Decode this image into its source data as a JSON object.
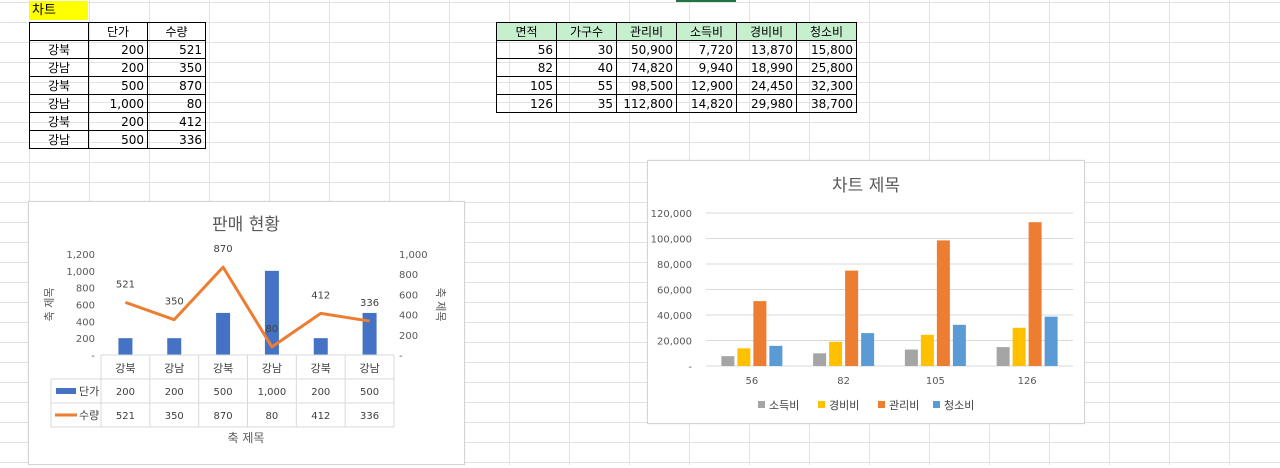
{
  "sheet": {
    "title_cell": "차트"
  },
  "table1": {
    "headers": [
      "",
      "단가",
      "수량"
    ],
    "rows": [
      [
        "강북",
        "200",
        "521"
      ],
      [
        "강남",
        "200",
        "350"
      ],
      [
        "강북",
        "500",
        "870"
      ],
      [
        "강남",
        "1,000",
        "80"
      ],
      [
        "강북",
        "200",
        "412"
      ],
      [
        "강남",
        "500",
        "336"
      ]
    ]
  },
  "table2": {
    "headers": [
      "면적",
      "가구수",
      "관리비",
      "소득비",
      "경비비",
      "청소비"
    ],
    "rows": [
      [
        "56",
        "30",
        "50,900",
        "7,720",
        "13,870",
        "15,800"
      ],
      [
        "82",
        "40",
        "74,820",
        "9,940",
        "18,990",
        "25,800"
      ],
      [
        "105",
        "55",
        "98,500",
        "12,900",
        "24,450",
        "32,300"
      ],
      [
        "126",
        "35",
        "112,800",
        "14,820",
        "29,980",
        "38,700"
      ]
    ]
  },
  "chart_data": [
    {
      "type": "bar",
      "title": "판매 현황",
      "xlabel": "축 제목",
      "ylabel": "축 제목",
      "y2label": "축 제목",
      "categories": [
        "강북",
        "강남",
        "강북",
        "강남",
        "강북",
        "강남"
      ],
      "series": [
        {
          "name": "단가",
          "kind": "bar",
          "color": "#4472c4",
          "values": [
            200,
            200,
            500,
            1000,
            200,
            500
          ]
        },
        {
          "name": "수량",
          "kind": "line",
          "color": "#ed7d31",
          "values": [
            521,
            350,
            870,
            80,
            412,
            336
          ],
          "axis": "secondary"
        }
      ],
      "yticks": [
        "1,200",
        "1,000",
        "800",
        "600",
        "400",
        "200",
        "-"
      ],
      "y2ticks": [
        "1,000",
        "800",
        "600",
        "400",
        "200",
        "-"
      ],
      "ylim": [
        0,
        1200
      ],
      "y2lim": [
        0,
        1000
      ],
      "line_labels": [
        "521",
        "350",
        "870",
        "80",
        "412",
        "336"
      ],
      "table_rows": [
        {
          "name": "단가",
          "cells": [
            "200",
            "200",
            "500",
            "1,000",
            "200",
            "500"
          ]
        },
        {
          "name": "수량",
          "cells": [
            "521",
            "350",
            "870",
            "80",
            "412",
            "336"
          ]
        }
      ]
    },
    {
      "type": "bar",
      "title": "차트 제목",
      "categories": [
        "56",
        "82",
        "105",
        "126"
      ],
      "series": [
        {
          "name": "소득비",
          "color": "#a5a5a5",
          "values": [
            7720,
            9940,
            12900,
            14820
          ]
        },
        {
          "name": "경비비",
          "color": "#ffc000",
          "values": [
            13870,
            18990,
            24450,
            29980
          ]
        },
        {
          "name": "관리비",
          "color": "#ed7d31",
          "values": [
            50900,
            74820,
            98500,
            112800
          ]
        },
        {
          "name": "청소비",
          "color": "#5b9bd5",
          "values": [
            15800,
            25800,
            32300,
            38700
          ]
        }
      ],
      "yticks": [
        "120,000",
        "100,000",
        "80,000",
        "60,000",
        "40,000",
        "20,000",
        "-"
      ],
      "ylim": [
        0,
        120000
      ],
      "legend": "bottom"
    }
  ]
}
